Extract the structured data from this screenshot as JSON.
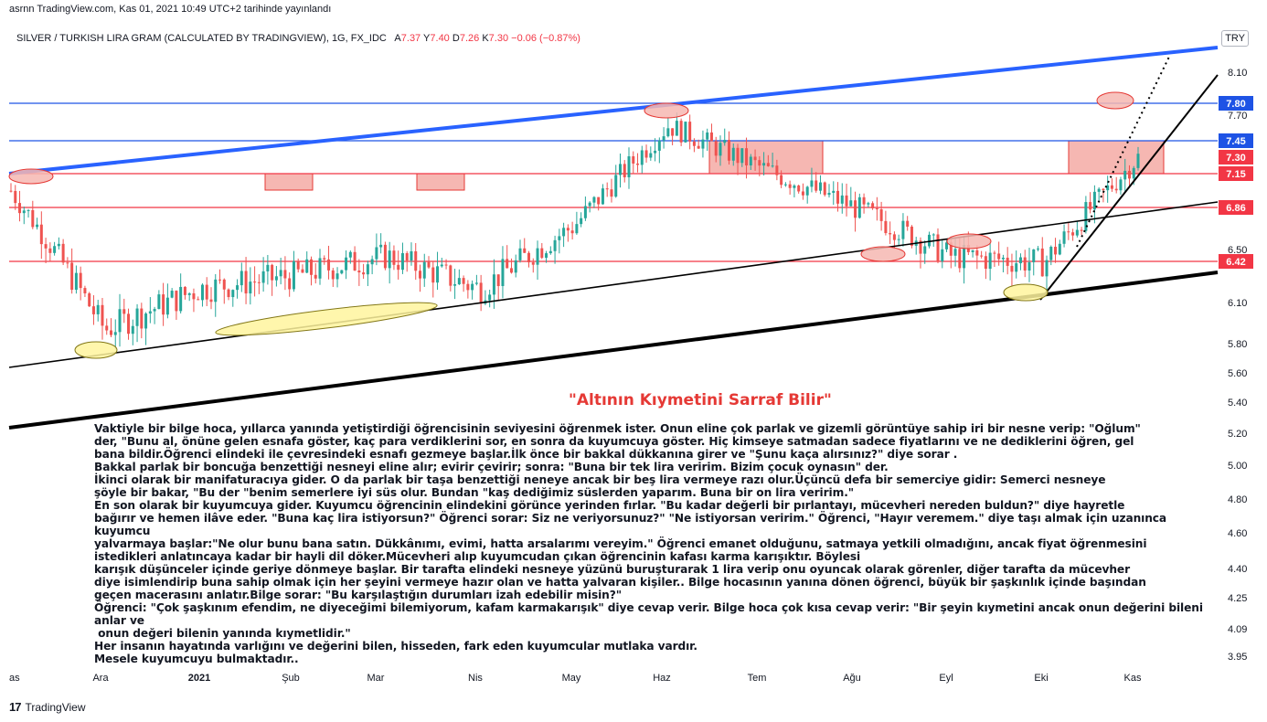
{
  "header": {
    "published": "asrnn TradingView.com, Kas 01, 2021 10:49 UTC+2 tarihinde yayınlandı",
    "symbol": "SILVER / TURKISH LIRA GRAM (CALCULATED BY TRADINGVIEW), 1G, FX_IDC",
    "o_label": "A",
    "o_val": "7.37",
    "h_label": "Y",
    "h_val": "7.40",
    "l_label": "D",
    "l_val": "7.26",
    "c_label": "K",
    "c_val": "7.30",
    "change": "−0.06 (−0.87%)",
    "currency": "TRY"
  },
  "chart_data": {
    "type": "candlestick",
    "y_axis": {
      "ticks": [
        "8.10",
        "7.70",
        "6.50",
        "6.10",
        "5.80",
        "5.60",
        "5.40",
        "5.20",
        "5.00",
        "4.80",
        "4.60",
        "4.40",
        "4.25",
        "4.09",
        "3.95"
      ],
      "scale": "log"
    },
    "x_axis": {
      "ticks": [
        "Kas",
        "Ara",
        "2021",
        "Şub",
        "Mar",
        "Nis",
        "May",
        "Haz",
        "Tem",
        "Ağu",
        "Eyl",
        "Eki",
        "Kas"
      ]
    },
    "price_labels": [
      {
        "value": "7.80",
        "kind": "level",
        "color": "#1e53e5"
      },
      {
        "value": "7.45",
        "kind": "level",
        "color": "#1e53e5"
      },
      {
        "value": "7.30",
        "kind": "last",
        "color": "#f23645"
      },
      {
        "value": "7.15",
        "kind": "level",
        "color": "#f23645"
      },
      {
        "value": "6.86",
        "kind": "level",
        "color": "#f23645"
      },
      {
        "value": "6.42",
        "kind": "level",
        "color": "#f23645"
      }
    ],
    "approx_series": {
      "x_months": [
        "Kas",
        "Ara",
        "2021",
        "Şub",
        "Mar",
        "Nis",
        "May",
        "Haz",
        "Tem",
        "Ağu",
        "Eyl",
        "Eki",
        "Kas"
      ],
      "close": [
        7.0,
        5.9,
        6.2,
        6.3,
        6.45,
        6.2,
        6.7,
        7.6,
        7.2,
        6.85,
        6.45,
        6.4,
        7.3
      ]
    },
    "colors": {
      "up": "#26a69a",
      "down": "#ef5350",
      "level_blue": "#1e53e5",
      "level_red": "#f23645",
      "trend_blue": "#2962ff"
    }
  },
  "story": {
    "title": "\"Altının Kıymetini Sarraf Bilir\"",
    "lines": [
      "Vaktiyle bir bilge hoca, yıllarca yanında yetiştirdiği öğrencisinin seviyesini öğrenmek ister. Onun eline çok parlak ve gizemli görüntüye sahip iri bir nesne verip: \"Oğlum\"",
      "der, \"Bunu al, önüne gelen esnafa göster, kaç para verdiklerini sor, en sonra da kuyumcuya göster. Hiç kimseye satmadan sadece fiyatlarını ve ne dediklerini öğren, gel",
      "bana bildir.Öğrenci elindeki ile çevresindeki esnafı gezmeye başlar.İlk önce bir bakkal dükkanına girer ve \"Şunu kaça alırsınız?\" diye sorar .",
      "Bakkal parlak bir boncuğa benzettiği nesneyi eline alır; evirir çevirir; sonra: \"Buna bir tek lira veririm. Bizim çocuk oynasın\" der.",
      "İkinci olarak bir manifaturacıya gider. O da parlak bir taşa benzettiği neneye ancak bir beş lira vermeye razı olur.Üçüncü defa bir semerciye gidir: Semerci nesneye",
      "şöyle bir bakar, \"Bu der \"benim semerlere iyi süs olur. Bundan \"kaş dediğimiz süslerden yaparım. Buna bir on lira veririm.\"",
      "En son olarak bir kuyumcuya gider. Kuyumcu öğrencinin elindekini görünce yerinden fırlar. \"Bu kadar değerli bir pırlantayı, mücevheri nereden buldun?\" diye hayretle",
      "bağırır ve hemen ilâve eder. \"Buna kaç lira istiyorsun?\" Öğrenci sorar: Siz ne veriyorsunuz?\" \"Ne istiyorsan veririm.\" Öğrenci, \"Hayır veremem.\" diye taşı almak için uzanınca kuyumcu",
      "yalvarmaya başlar:\"Ne olur bunu bana satın. Dükkânımı, evimi, hatta arsalarımı vereyim.\" Öğrenci emanet olduğunu, satmaya yetkili olmadığını, ancak fiyat öğrenmesini",
      "istedikleri anlatıncaya kadar bir hayli dil döker.Mücevheri alıp kuyumcudan çıkan öğrencinin kafası karma karışıktır. Böylesi",
      "karışık düşünceler içinde geriye dönmeye başlar. Bir tarafta elindeki nesneye yüzünü buruşturarak 1 lira verip onu oyuncak olarak görenler, diğer tarafta da mücevher",
      "diye isimlendirip buna sahip olmak için her şeyini vermeye hazır olan ve hatta yalvaran kişiler.. Bilge hocasının yanına dönen öğrenci, büyük bir şaşkınlık içinde başından",
      "geçen macerasını anlatır.Bilge sorar: \"Bu karşılaştığın durumları izah edebilir misin?\"",
      "Öğrenci: \"Çok şaşkınım efendim, ne diyeceğimi bilemiyorum, kafam karmakarışık\" diye cevap verir. Bilge hoca çok kısa cevap verir: \"Bir şeyin kıymetini ancak onun değerini bileni anlar ve",
      " onun değeri bilenin yanında kıymetlidir.\"",
      "Her insanın hayatında varlığını ve değerini bilen, hisseden, fark eden kuyumcular mutlaka vardır.",
      "Mesele kuyumcuyu bulmaktadır.."
    ]
  },
  "footer": {
    "brand": "TradingView",
    "logo": "17"
  }
}
